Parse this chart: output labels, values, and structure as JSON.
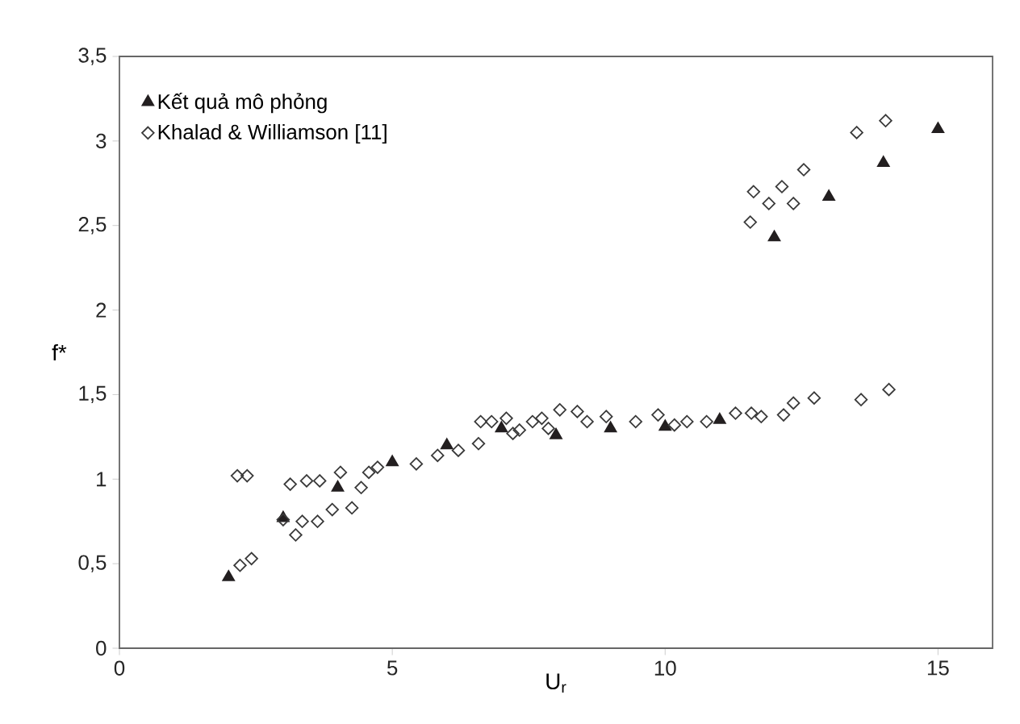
{
  "chart_data": {
    "type": "scatter",
    "xlabel": "U$_{r}$",
    "ylabel": "f*",
    "xlim": [
      0,
      16
    ],
    "ylim": [
      0,
      3.5
    ],
    "xticks": [
      0,
      5,
      10,
      15
    ],
    "yticks": [
      0,
      {
        "value": 0.5,
        "label": "0,5"
      },
      1,
      {
        "value": 1.5,
        "label": "1,5"
      },
      2,
      {
        "value": 2.5,
        "label": "2,5"
      },
      3,
      {
        "value": 3.5,
        "label": "3,5"
      }
    ],
    "grid": false,
    "legend": "top left",
    "series": [
      {
        "name": "Kết quả mô phỏng",
        "color": "#231f20",
        "marker": "triangle",
        "x": [
          2,
          3,
          4,
          5,
          6,
          7,
          8,
          9,
          10,
          11,
          12,
          13,
          14,
          15
        ],
        "values": [
          0.42,
          0.77,
          0.95,
          1.1,
          1.2,
          1.3,
          1.26,
          1.3,
          1.31,
          1.35,
          2.43,
          2.67,
          2.87,
          3.07
        ]
      },
      {
        "name": "Khalad & Williamson [11]",
        "color": "#3a3a3a",
        "marker": "diamond",
        "x": [
          2.16,
          2.34,
          2.21,
          2.42,
          3.13,
          3.43,
          3.67,
          3.0,
          3.23,
          3.35,
          3.63,
          3.9,
          4.05,
          4.26,
          4.43,
          4.57,
          4.73,
          5.44,
          5.83,
          6.21,
          6.58,
          6.62,
          6.82,
          7.09,
          7.21,
          7.33,
          7.57,
          7.74,
          7.86,
          8.07,
          8.39,
          8.57,
          8.92,
          9.46,
          9.87,
          10.17,
          10.4,
          10.76,
          11.29,
          11.58,
          11.76,
          12.17,
          12.35,
          12.73,
          13.59,
          14.1,
          11.56,
          11.62,
          11.9,
          12.14,
          12.35,
          12.54,
          13.51,
          14.04
        ],
        "values": [
          1.02,
          1.02,
          0.49,
          0.53,
          0.97,
          0.99,
          0.99,
          0.76,
          0.67,
          0.75,
          0.75,
          0.82,
          1.04,
          0.83,
          0.95,
          1.04,
          1.07,
          1.09,
          1.14,
          1.17,
          1.21,
          1.34,
          1.34,
          1.36,
          1.27,
          1.29,
          1.34,
          1.36,
          1.3,
          1.41,
          1.4,
          1.34,
          1.37,
          1.34,
          1.38,
          1.32,
          1.34,
          1.34,
          1.39,
          1.39,
          1.37,
          1.38,
          1.45,
          1.48,
          1.47,
          1.53,
          2.52,
          2.7,
          2.63,
          2.73,
          2.63,
          2.83,
          3.05,
          3.12
        ]
      }
    ]
  }
}
